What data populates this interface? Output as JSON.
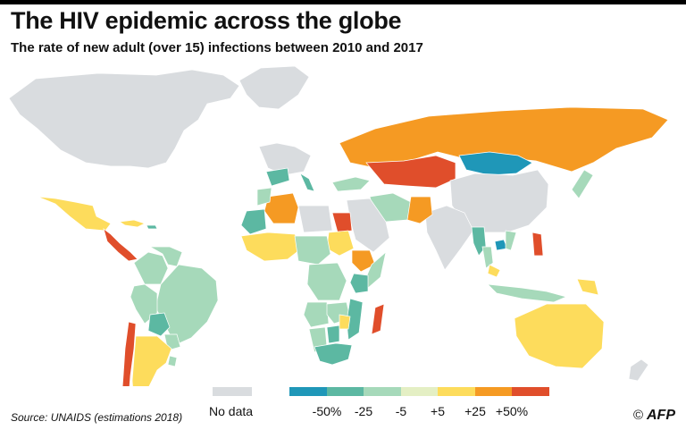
{
  "title": "The HIV epidemic across the globe",
  "subtitle": "The rate of new adult (over 15) infections between 2010 and 2017",
  "legend": {
    "no_data_label": "No data",
    "no_data_color": "#d9dcdf",
    "bins": [
      {
        "color": "#1f97b8"
      },
      {
        "color": "#5cb8a2"
      },
      {
        "color": "#a6d9ba"
      },
      {
        "color": "#e4efc4"
      },
      {
        "color": "#fddc5c"
      },
      {
        "color": "#f59a23"
      },
      {
        "color": "#e04e2b"
      }
    ],
    "ticks": [
      "-50%",
      "-25",
      "-5",
      "+5",
      "+25",
      "+50%"
    ]
  },
  "source": "Source: UNAIDS (estimations 2018)",
  "credit": {
    "symbol": "©",
    "text": "AFP"
  },
  "map_data": {
    "regions": [
      {
        "name": "North America",
        "category": "nodata"
      },
      {
        "name": "Greenland",
        "category": "nodata"
      },
      {
        "name": "Mexico",
        "category": "5_25"
      },
      {
        "name": "Central America",
        "category": "gt50"
      },
      {
        "name": "Cuba",
        "category": "5_25"
      },
      {
        "name": "Haiti",
        "category": "m25_m5"
      },
      {
        "name": "Caribbean coast",
        "category": "25_50"
      },
      {
        "name": "Colombia",
        "category": "m5_5"
      },
      {
        "name": "Venezuela",
        "category": "m5_5"
      },
      {
        "name": "Brazil",
        "category": "m5_5"
      },
      {
        "name": "Peru",
        "category": "m5_5"
      },
      {
        "name": "Bolivia",
        "category": "m25_m5"
      },
      {
        "name": "Paraguay",
        "category": "m5_5"
      },
      {
        "name": "Chile",
        "category": "gt50"
      },
      {
        "name": "Argentina",
        "category": "5_25"
      },
      {
        "name": "Uruguay",
        "category": "m5_5"
      },
      {
        "name": "Western Europe",
        "category": "nodata"
      },
      {
        "name": "Spain",
        "category": "m25_m5"
      },
      {
        "name": "Italy",
        "category": "m25_m5"
      },
      {
        "name": "Turkey",
        "category": "m5_5"
      },
      {
        "name": "Russia",
        "category": "25_50"
      },
      {
        "name": "Kazakhstan",
        "category": "gt50"
      },
      {
        "name": "Mongolia",
        "category": "lt_m50"
      },
      {
        "name": "China",
        "category": "nodata"
      },
      {
        "name": "India",
        "category": "nodata"
      },
      {
        "name": "Iran",
        "category": "m5_5"
      },
      {
        "name": "Pakistan",
        "category": "25_50"
      },
      {
        "name": "Middle East",
        "category": "nodata"
      },
      {
        "name": "Egypt",
        "category": "gt50"
      },
      {
        "name": "Algeria",
        "category": "25_50"
      },
      {
        "name": "Libya",
        "category": "nodata"
      },
      {
        "name": "Morocco",
        "category": "m5_5"
      },
      {
        "name": "Mauritania",
        "category": "m25_m5"
      },
      {
        "name": "Sudan",
        "category": "5_25"
      },
      {
        "name": "Ethiopia",
        "category": "25_50"
      },
      {
        "name": "Somalia",
        "category": "m5_5"
      },
      {
        "name": "West Africa",
        "category": "5_25"
      },
      {
        "name": "Central Africa",
        "category": "m5_5"
      },
      {
        "name": "Kenya",
        "category": "m25_m5"
      },
      {
        "name": "DR Congo",
        "category": "m5_5"
      },
      {
        "name": "Angola",
        "category": "m5_5"
      },
      {
        "name": "Zambia",
        "category": "m5_5"
      },
      {
        "name": "Mozambique",
        "category": "m25_m5"
      },
      {
        "name": "Namibia",
        "category": "m5_5"
      },
      {
        "name": "Botswana",
        "category": "m25_m5"
      },
      {
        "name": "Zimbabwe",
        "category": "5_25"
      },
      {
        "name": "South Africa",
        "category": "m25_m5"
      },
      {
        "name": "Madagascar",
        "category": "gt50"
      },
      {
        "name": "Myanmar",
        "category": "m25_m5"
      },
      {
        "name": "Thailand",
        "category": "m5_5"
      },
      {
        "name": "Cambodia",
        "category": "lt_m50"
      },
      {
        "name": "Vietnam",
        "category": "m5_5"
      },
      {
        "name": "Malaysia",
        "category": "5_25"
      },
      {
        "name": "Indonesia",
        "category": "m5_5"
      },
      {
        "name": "Philippines",
        "category": "gt50"
      },
      {
        "name": "Papua New Guinea",
        "category": "5_25"
      },
      {
        "name": "Japan",
        "category": "m5_5"
      },
      {
        "name": "Australia",
        "category": "5_25"
      },
      {
        "name": "New Zealand",
        "category": "nodata"
      }
    ]
  }
}
